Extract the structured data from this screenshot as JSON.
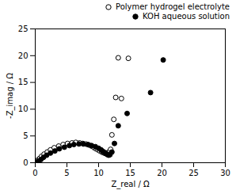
{
  "chart_data": {
    "type": "scatter",
    "xlabel": "Z_real / Ω",
    "ylabel": "-Z_imag / Ω",
    "xlim": [
      0,
      30
    ],
    "xticks": [
      0,
      5,
      10,
      15,
      20,
      25,
      30
    ],
    "ylim": [
      0,
      25
    ],
    "yticks": [
      0,
      5,
      10,
      15,
      20,
      25
    ],
    "grid": false,
    "legend": "upper right",
    "series": [
      {
        "name": "Polymer hydrogel electrolyte",
        "color": "black",
        "marker": "open_circle",
        "x": [
          0.2,
          0.4,
          0.7,
          1.0,
          1.4,
          1.9,
          2.4,
          3.0,
          3.7,
          4.4,
          5.1,
          5.8,
          6.4,
          7.0,
          7.5,
          8.0,
          8.5,
          8.9,
          9.3,
          9.6,
          9.9,
          10.2,
          10.5,
          10.7,
          10.9,
          11.1,
          11.3,
          11.5,
          11.7,
          11.9,
          12.1,
          12.4,
          12.7,
          13.1,
          13.6,
          14.7
        ],
        "values": [
          0.2,
          0.5,
          0.8,
          1.2,
          1.6,
          2.0,
          2.4,
          2.8,
          3.1,
          3.4,
          3.6,
          3.7,
          3.8,
          3.7,
          3.6,
          3.5,
          3.3,
          3.1,
          2.8,
          2.6,
          2.4,
          2.2,
          2.0,
          1.9,
          1.8,
          1.7,
          1.7,
          1.8,
          2.1,
          2.5,
          5.2,
          8.1,
          12.2,
          19.6,
          12.0,
          19.5
        ]
      },
      {
        "name": "KOH aqueous solution",
        "color": "black",
        "marker": "circle",
        "x": [
          0.2,
          0.5,
          0.9,
          1.3,
          1.8,
          2.4,
          3.1,
          3.8,
          4.6,
          5.4,
          6.1,
          6.9,
          7.6,
          8.3,
          8.9,
          9.5,
          10.0,
          10.4,
          10.7,
          11.0,
          11.2,
          11.4,
          11.6,
          11.8,
          12.1,
          12.5,
          13.1,
          14.5,
          18.2,
          20.2
        ],
        "values": [
          0.1,
          0.3,
          0.6,
          1.0,
          1.4,
          1.8,
          2.2,
          2.6,
          2.9,
          3.2,
          3.4,
          3.5,
          3.5,
          3.4,
          3.2,
          3.0,
          2.7,
          2.4,
          2.1,
          1.9,
          1.7,
          1.5,
          1.4,
          1.5,
          2.0,
          3.6,
          6.9,
          9.2,
          13.1,
          19.2
        ]
      }
    ]
  }
}
